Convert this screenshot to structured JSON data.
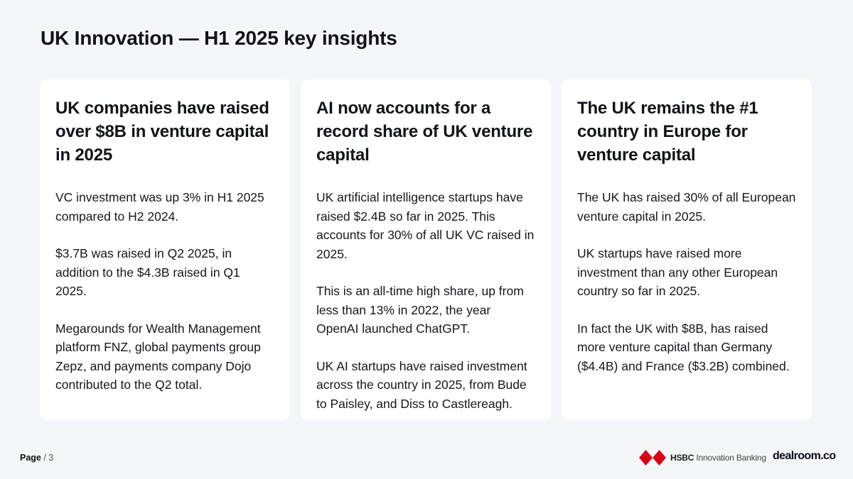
{
  "page": {
    "title": "UK Innovation — H1 2025 key insights"
  },
  "cards": [
    {
      "heading": "UK companies have raised over $8B in venture capital in 2025",
      "paragraphs": [
        "VC investment was up 3% in H1 2025 compared to H2 2024.",
        "$3.7B was raised in Q2 2025, in addition to the $4.3B raised in Q1 2025.",
        "Megarounds for Wealth Management platform FNZ, global payments group Zepz, and payments company Dojo contributed to the Q2 total."
      ]
    },
    {
      "heading": "AI now accounts for a record share of UK venture capital",
      "paragraphs": [
        "UK artificial intelligence startups have raised $2.4B so far in 2025. This accounts for 30% of all UK VC raised in 2025.",
        "This is an all-time high share, up from less than 13% in 2022, the year OpenAI launched ChatGPT.",
        "UK AI startups have raised investment across the country in 2025, from Bude to Paisley, and Diss to Castlereagh."
      ]
    },
    {
      "heading": "The UK remains the #1 country in Europe for venture capital",
      "paragraphs": [
        "The UK has raised 30% of all European venture capital in 2025.",
        "UK startups have raised more investment than any other European country so far in 2025.",
        "In fact the UK with $8B, has raised more venture capital than Germany ($4.4B) and France ($3.2B) combined."
      ]
    }
  ],
  "footer": {
    "page_label": "Page",
    "page_number": "/ 3",
    "hsbc_name": "HSBC",
    "hsbc_sub": "Innovation Banking",
    "dealroom": "dealroom.co",
    "colors": {
      "hsbc_red": "#db0011",
      "background": "#f4f6fa",
      "card": "#ffffff"
    }
  }
}
